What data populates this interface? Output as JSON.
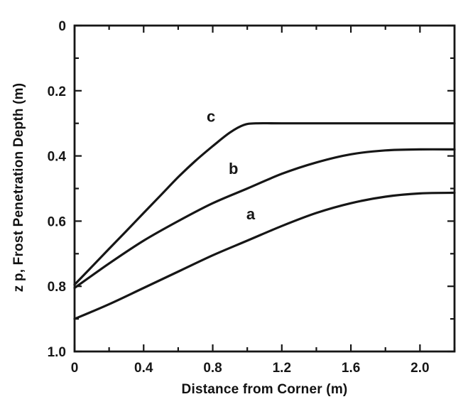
{
  "figure": {
    "background": "#ffffff",
    "ink_color": "#161616"
  },
  "chart_data": {
    "type": "line",
    "title": "",
    "xlabel": "Distance from Corner (m)",
    "ylabel": "z p, Frost Penetration Depth (m)",
    "xlim": [
      0,
      2.2
    ],
    "ylim": [
      0,
      1.0
    ],
    "y_inverted": true,
    "grid": false,
    "x_major_ticks": [
      0,
      0.4,
      0.8,
      1.2,
      1.6,
      2.0
    ],
    "x_tick_labels": [
      "0",
      "0.4",
      "0.8",
      "1.2",
      "1.6",
      "2.0"
    ],
    "x_minor_ticks": [
      0.2,
      0.6,
      1.0,
      1.4,
      1.8,
      2.2
    ],
    "y_major_ticks": [
      0,
      0.2,
      0.4,
      0.6,
      0.8,
      1.0
    ],
    "y_tick_labels": [
      "0",
      "0.2",
      "0.4",
      "0.6",
      "0.8",
      "1.0"
    ],
    "y_minor_ticks": [
      0.1,
      0.3,
      0.5,
      0.7,
      0.9
    ],
    "series": [
      {
        "name": "a",
        "label": "a",
        "label_x": 1.02,
        "label_y": 0.595,
        "points": [
          [
            0,
            0.9
          ],
          [
            0.2,
            0.855
          ],
          [
            0.4,
            0.805
          ],
          [
            0.6,
            0.755
          ],
          [
            0.8,
            0.705
          ],
          [
            1.0,
            0.66
          ],
          [
            1.2,
            0.615
          ],
          [
            1.4,
            0.575
          ],
          [
            1.6,
            0.545
          ],
          [
            1.8,
            0.525
          ],
          [
            2.0,
            0.515
          ],
          [
            2.2,
            0.513
          ]
        ]
      },
      {
        "name": "b",
        "label": "b",
        "label_x": 0.92,
        "label_y": 0.455,
        "points": [
          [
            0,
            0.805
          ],
          [
            0.2,
            0.73
          ],
          [
            0.4,
            0.66
          ],
          [
            0.6,
            0.6
          ],
          [
            0.8,
            0.545
          ],
          [
            1.0,
            0.5
          ],
          [
            1.2,
            0.455
          ],
          [
            1.4,
            0.42
          ],
          [
            1.6,
            0.395
          ],
          [
            1.8,
            0.383
          ],
          [
            2.0,
            0.38
          ],
          [
            2.2,
            0.38
          ]
        ]
      },
      {
        "name": "c",
        "label": "c",
        "label_x": 0.79,
        "label_y": 0.295,
        "points": [
          [
            0,
            0.795
          ],
          [
            0.1,
            0.74
          ],
          [
            0.2,
            0.685
          ],
          [
            0.3,
            0.63
          ],
          [
            0.4,
            0.575
          ],
          [
            0.5,
            0.52
          ],
          [
            0.6,
            0.465
          ],
          [
            0.7,
            0.415
          ],
          [
            0.8,
            0.37
          ],
          [
            0.9,
            0.328
          ],
          [
            0.98,
            0.305
          ],
          [
            1.05,
            0.3
          ],
          [
            1.2,
            0.3
          ],
          [
            1.6,
            0.3
          ],
          [
            2.0,
            0.3
          ],
          [
            2.2,
            0.3
          ]
        ]
      }
    ]
  }
}
